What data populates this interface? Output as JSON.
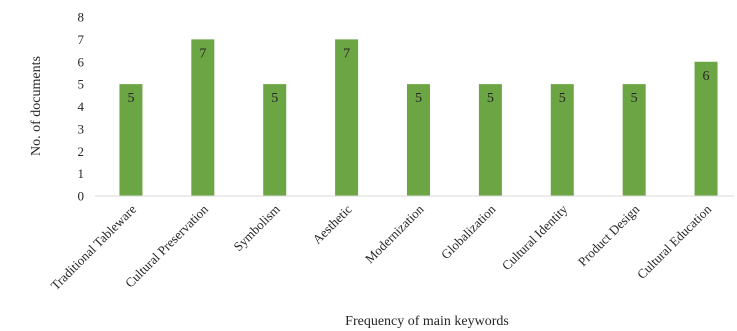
{
  "chart_data": {
    "type": "bar",
    "categories": [
      "Traditional Tableware",
      "Cultural Preservation",
      "Symbolism",
      "Aesthetic",
      "Modernization",
      "Globalization",
      "Cultural Identity",
      "Product Design",
      "Cultural Education"
    ],
    "values": [
      5,
      7,
      5,
      7,
      5,
      5,
      5,
      5,
      6
    ],
    "title": "",
    "xlabel": "Frequency of main keywords",
    "ylabel": "No. of documents",
    "ylim": [
      0,
      8
    ],
    "yticks": [
      0,
      1,
      2,
      3,
      4,
      5,
      6,
      7,
      8
    ],
    "grid": false,
    "legend": "none",
    "bar_color": "#6ca544"
  }
}
